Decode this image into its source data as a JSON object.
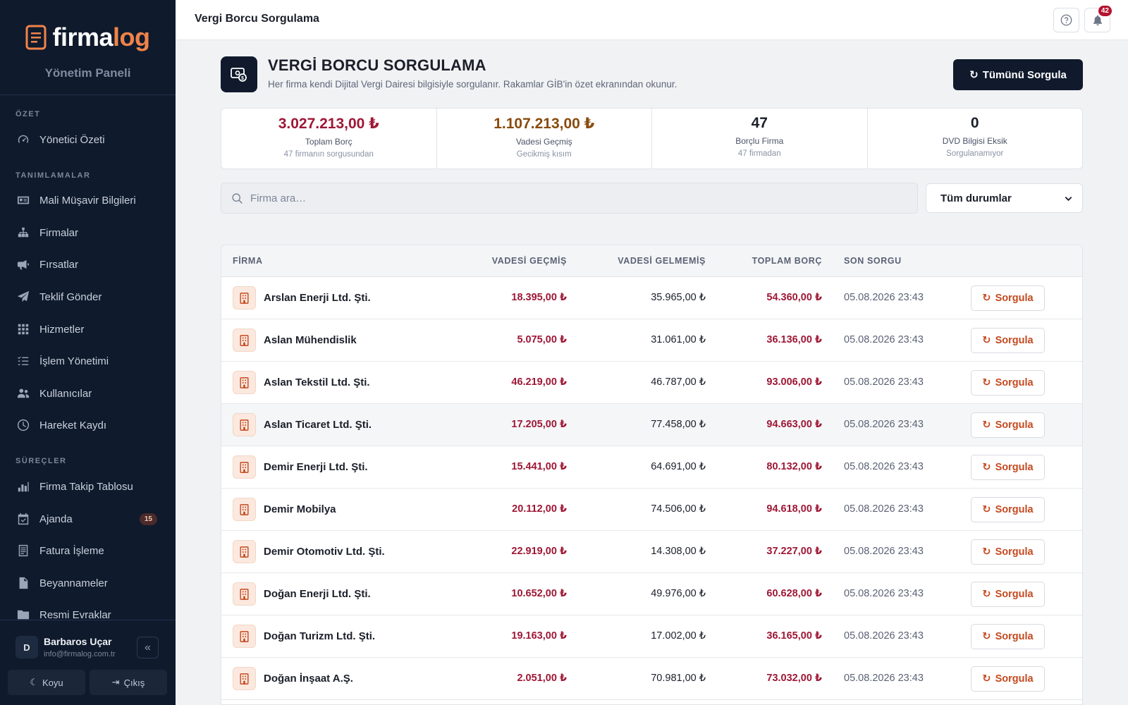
{
  "app": {
    "brand_prefix": "firma",
    "brand_suffix": "log",
    "subtitle": "Yönetim Paneli"
  },
  "sidebar": {
    "sections": [
      {
        "label": "ÖZET"
      },
      {
        "label": "TANIMLAMALAR"
      },
      {
        "label": "SÜREÇLER"
      }
    ],
    "items": [
      {
        "label": "Yönetici Özeti",
        "icon": "gauge-icon"
      },
      {
        "label": "Mali Müşavir Bilgileri",
        "icon": "id-card-icon"
      },
      {
        "label": "Firmalar",
        "icon": "sitemap-icon"
      },
      {
        "label": "Fırsatlar",
        "icon": "megaphone-icon"
      },
      {
        "label": "Teklif Gönder",
        "icon": "paper-plane-icon"
      },
      {
        "label": "Hizmetler",
        "icon": "grid-icon"
      },
      {
        "label": "İşlem Yönetimi",
        "icon": "list-check-icon"
      },
      {
        "label": "Kullanıcılar",
        "icon": "users-icon"
      },
      {
        "label": "Hareket Kaydı",
        "icon": "clock-icon"
      },
      {
        "label": "Firma Takip Tablosu",
        "icon": "bar-chart-icon"
      },
      {
        "label": "Ajanda",
        "icon": "calendar-check-icon",
        "badge": "15"
      },
      {
        "label": "Fatura İşleme",
        "icon": "receipt-icon"
      },
      {
        "label": "Beyannameler",
        "icon": "file-icon"
      },
      {
        "label": "Resmi Evraklar",
        "icon": "folder-icon"
      }
    ],
    "user": {
      "initial": "D",
      "name": "Barbaros Uçar",
      "email": "info@firmalog.com.tr"
    },
    "theme_label": "Koyu",
    "logout_label": "Çıkış"
  },
  "topbar": {
    "title": "Vergi Borcu Sorgulama",
    "notification_count": "42"
  },
  "header": {
    "title": "VERGİ BORCU SORGULAMA",
    "subtitle": "Her firma kendi Dijital Vergi Dairesi bilgisiyle sorgulanır. Rakamlar GİB'in özet ekranından okunur.",
    "query_all_label": "Tümünü Sorgula"
  },
  "stats": [
    {
      "value": "3.027.213,00 ₺",
      "label": "Toplam Borç",
      "sub": "47 firmanın sorgusundan",
      "color": "#9e1735"
    },
    {
      "value": "1.107.213,00 ₺",
      "label": "Vadesi Geçmiş",
      "sub": "Gecikmiş kısım",
      "color": "#8a4a0c"
    },
    {
      "value": "47",
      "label": "Borçlu Firma",
      "sub": "47 firmadan",
      "color": "#1b1f2a"
    },
    {
      "value": "0",
      "label": "DVD Bilgisi Eksik",
      "sub": "Sorgulanamıyor",
      "color": "#1b1f2a"
    }
  ],
  "filters": {
    "search_placeholder": "Firma ara…",
    "status_selected": "Tüm durumlar"
  },
  "table": {
    "headers": {
      "firm": "FİRMA",
      "overdue": "VADESİ GEÇMİŞ",
      "not_due": "VADESİ GELMEMİŞ",
      "total": "TOPLAM BORÇ",
      "last_query": "SON SORGU"
    },
    "action_label": "Sorgula",
    "rows": [
      {
        "firm": "Arslan Enerji Ltd. Şti.",
        "overdue": "18.395,00 ₺",
        "not_due": "35.965,00 ₺",
        "total": "54.360,00 ₺",
        "last_query": "05.08.2026 23:43"
      },
      {
        "firm": "Aslan Mühendislik",
        "overdue": "5.075,00 ₺",
        "not_due": "31.061,00 ₺",
        "total": "36.136,00 ₺",
        "last_query": "05.08.2026 23:43"
      },
      {
        "firm": "Aslan Tekstil Ltd. Şti.",
        "overdue": "46.219,00 ₺",
        "not_due": "46.787,00 ₺",
        "total": "93.006,00 ₺",
        "last_query": "05.08.2026 23:43"
      },
      {
        "firm": "Aslan Ticaret Ltd. Şti.",
        "overdue": "17.205,00 ₺",
        "not_due": "77.458,00 ₺",
        "total": "94.663,00 ₺",
        "last_query": "05.08.2026 23:43"
      },
      {
        "firm": "Demir Enerji Ltd. Şti.",
        "overdue": "15.441,00 ₺",
        "not_due": "64.691,00 ₺",
        "total": "80.132,00 ₺",
        "last_query": "05.08.2026 23:43"
      },
      {
        "firm": "Demir Mobilya",
        "overdue": "20.112,00 ₺",
        "not_due": "74.506,00 ₺",
        "total": "94.618,00 ₺",
        "last_query": "05.08.2026 23:43"
      },
      {
        "firm": "Demir Otomotiv Ltd. Şti.",
        "overdue": "22.919,00 ₺",
        "not_due": "14.308,00 ₺",
        "total": "37.227,00 ₺",
        "last_query": "05.08.2026 23:43"
      },
      {
        "firm": "Doğan Enerji Ltd. Şti.",
        "overdue": "10.652,00 ₺",
        "not_due": "49.976,00 ₺",
        "total": "60.628,00 ₺",
        "last_query": "05.08.2026 23:43"
      },
      {
        "firm": "Doğan Turizm Ltd. Şti.",
        "overdue": "19.163,00 ₺",
        "not_due": "17.002,00 ₺",
        "total": "36.165,00 ₺",
        "last_query": "05.08.2026 23:43"
      },
      {
        "firm": "Doğan İnşaat A.Ş.",
        "overdue": "2.051,00 ₺",
        "not_due": "70.981,00 ₺",
        "total": "73.032,00 ₺",
        "last_query": "05.08.2026 23:43"
      }
    ]
  }
}
